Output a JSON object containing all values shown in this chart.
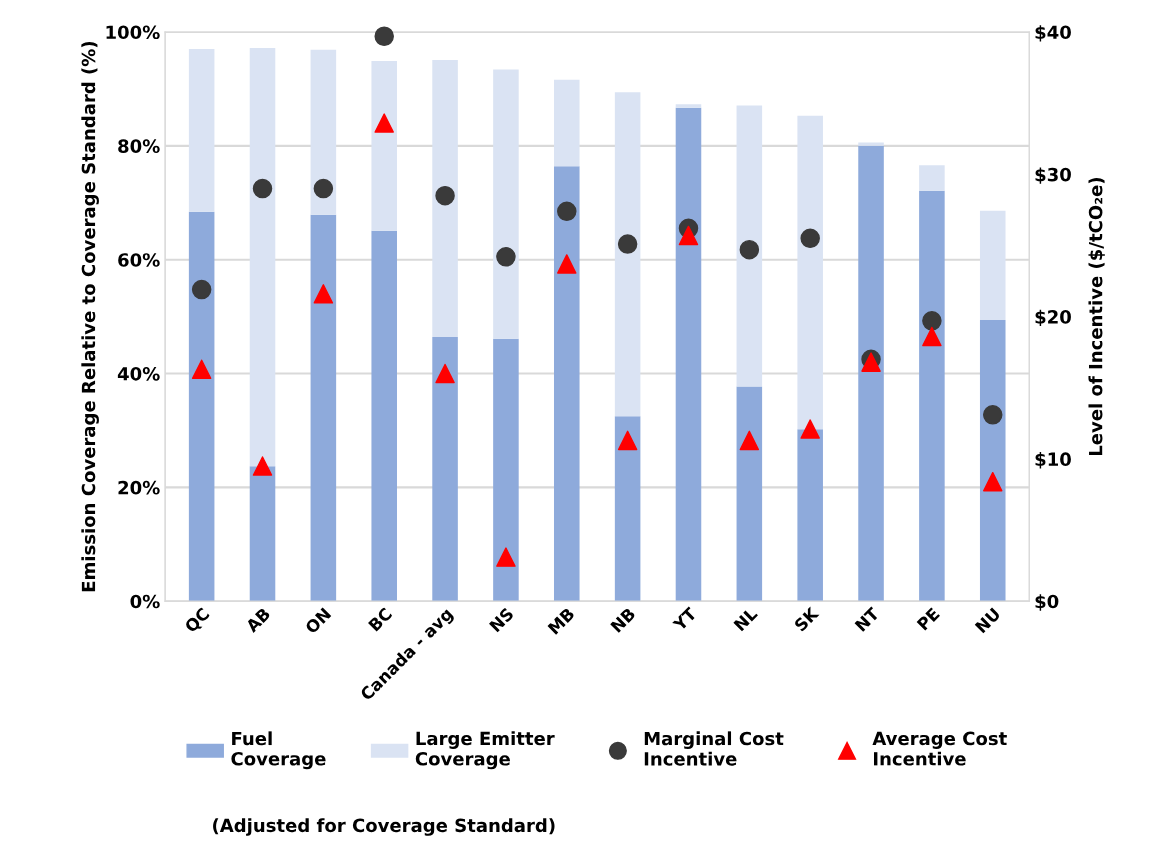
{
  "chart_data": {
    "type": "bar",
    "stacked": true,
    "categories": [
      "QC",
      "AB",
      "ON",
      "BC",
      "Canada - avg",
      "NS",
      "MB",
      "NB",
      "YT",
      "NL",
      "SK",
      "NT",
      "PE",
      "NU"
    ],
    "series": [
      {
        "name": "Fuel\nCoverage",
        "color": "#8eaadb",
        "values": [
          68.4,
          23.7,
          67.9,
          65.1,
          46.4,
          46.1,
          76.4,
          32.5,
          86.7,
          37.7,
          30.2,
          80.0,
          72.1,
          49.4
        ]
      },
      {
        "name": "Large Emitter\nCoverage",
        "color": "#dae3f3",
        "values": [
          28.6,
          73.5,
          29.0,
          29.8,
          48.7,
          47.3,
          15.2,
          56.9,
          0.6,
          49.4,
          55.1,
          0.6,
          4.5,
          19.2
        ]
      },
      {
        "name": "Marginal Cost\nIncentive",
        "type": "scatter",
        "axis": "y2",
        "marker": "circle",
        "color": "#3a3a3a",
        "values": [
          21.9,
          29.0,
          29.0,
          39.7,
          28.5,
          24.2,
          27.4,
          25.1,
          26.2,
          24.7,
          25.5,
          17.0,
          19.7,
          13.1
        ]
      },
      {
        "name": "Average Cost\nIncentive",
        "type": "scatter",
        "axis": "y2",
        "marker": "triangle",
        "color": "#ff0000",
        "values": [
          16.3,
          9.5,
          21.6,
          33.6,
          16.0,
          3.1,
          23.7,
          11.3,
          25.7,
          11.3,
          12.1,
          16.8,
          18.6,
          8.4
        ]
      }
    ],
    "ylabel": "Emission Coverage Relative to Coverage Standard (%)",
    "y2label": "Level of Incentive ($/tCO₂e)",
    "ylim": [
      0,
      100
    ],
    "yticks": [
      {
        "value": 0,
        "label": "0%"
      },
      {
        "value": 20,
        "label": "20%"
      },
      {
        "value": 40,
        "label": "40%"
      },
      {
        "value": 60,
        "label": "60%"
      },
      {
        "value": 80,
        "label": "80%"
      },
      {
        "value": 100,
        "label": "100%"
      }
    ],
    "y2lim": [
      0,
      40
    ],
    "y2ticks": [
      {
        "value": 0,
        "label": "$0"
      },
      {
        "value": 10,
        "label": "$10"
      },
      {
        "value": 20,
        "label": "$20"
      },
      {
        "value": 30,
        "label": "$30"
      },
      {
        "value": 40,
        "label": "$40"
      }
    ],
    "grid": "y",
    "legend": "bottom",
    "annotations": [
      "(Adjusted for Coverage Standard)"
    ]
  }
}
